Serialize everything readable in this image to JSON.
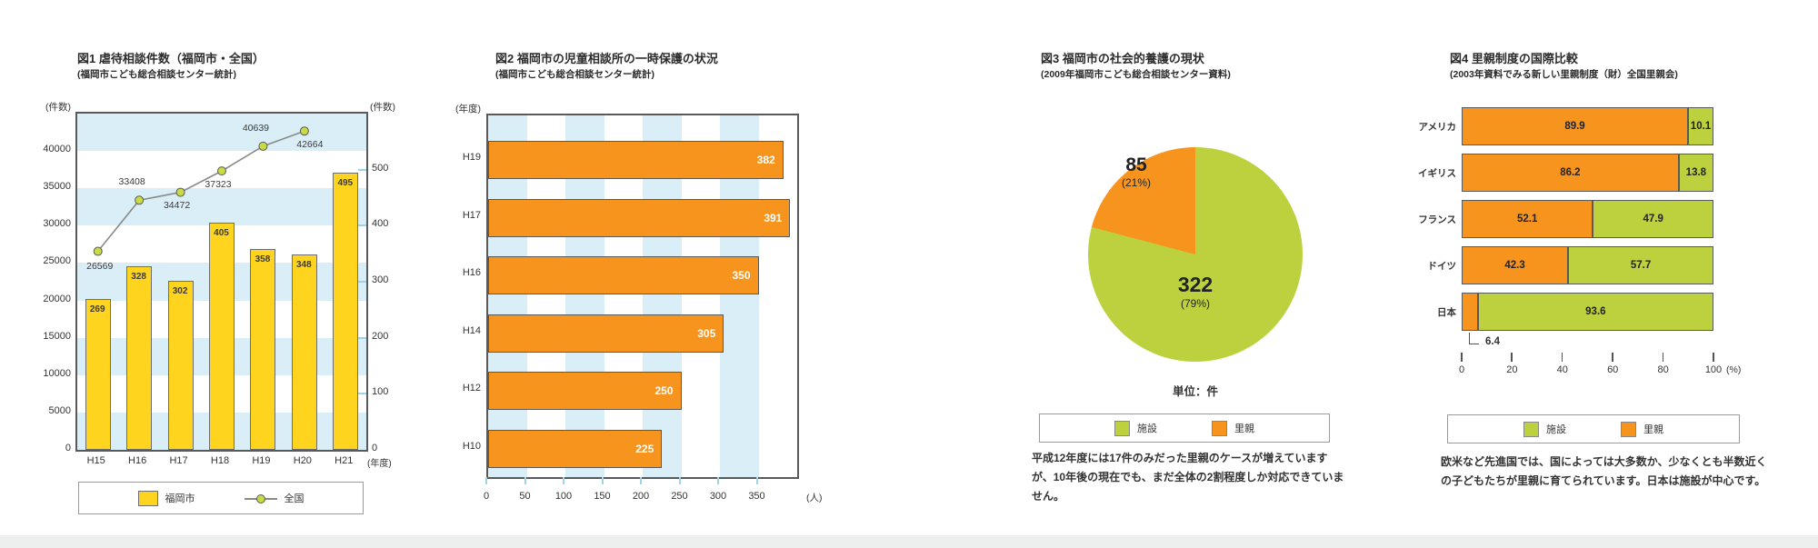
{
  "page": {
    "background": "#ffffff",
    "bottom_strip_color": "#ecefee"
  },
  "colors": {
    "yellow": "#FFD41E",
    "orange": "#F7941D",
    "green": "#BDD13F",
    "stripe_blue": "#DAEEF7",
    "plot_border": "#58595B",
    "bar_border": "#6E6E6E",
    "line_gray": "#8A8A8A",
    "marker_green": "#C9DA45",
    "tick_cyan": "#9ED3E8",
    "legend_border": "#9B9B9B",
    "text_dark": "#333333"
  },
  "chart_data": [
    {
      "type": "bar+line",
      "title": "図1 虐待相談件数（福岡市・全国）",
      "subtitle": "(福岡市こども総合相談センター統計)",
      "categories": [
        "H15",
        "H16",
        "H17",
        "H18",
        "H19",
        "H20",
        "H21"
      ],
      "series": [
        {
          "name": "福岡市",
          "type": "bar",
          "axis": "right",
          "values": [
            269,
            328,
            302,
            405,
            358,
            348,
            495
          ]
        },
        {
          "name": "全国",
          "type": "line",
          "axis": "left",
          "values": [
            26569,
            33408,
            34472,
            37323,
            40639,
            42664
          ]
        }
      ],
      "left_axis": {
        "label": "(件数)",
        "ticks": [
          0,
          5000,
          10000,
          15000,
          20000,
          25000,
          30000,
          35000,
          40000
        ],
        "max": 45000
      },
      "right_axis": {
        "label": "(件数)",
        "ticks": [
          0,
          100,
          200,
          300,
          400,
          500
        ],
        "max": 600
      },
      "x_axis_label": "(年度)",
      "legend": [
        "福岡市",
        "全国"
      ],
      "grid": "horizontal-stripes"
    },
    {
      "type": "bar",
      "orientation": "horizontal",
      "title": "図2 福岡市の児童相談所の一時保護の状況",
      "subtitle": "(福岡市こども総合相談センター統計)",
      "y_axis_label": "(年度)",
      "categories": [
        "H19",
        "H17",
        "H16",
        "H14",
        "H12",
        "H10"
      ],
      "values": [
        382,
        391,
        350,
        305,
        250,
        225
      ],
      "x_axis": {
        "ticks": [
          0,
          50,
          100,
          150,
          200,
          250,
          300,
          350
        ],
        "max": 400,
        "unit": "(人)"
      },
      "grid": "vertical-stripes"
    },
    {
      "type": "pie",
      "title": "図3 福岡市の社会的養護の現状",
      "subtitle": "(2009年福岡市こども総合相談センター資料)",
      "slices": [
        {
          "label": "施設",
          "value": 322,
          "pct": "(79%)",
          "color_key": "green"
        },
        {
          "label": "里親",
          "value": 85,
          "pct": "(21%)",
          "color_key": "orange"
        }
      ],
      "unit_note": "単位：件",
      "legend": [
        "施設",
        "里親"
      ],
      "caption": "平成12年度には17件のみだった里親のケースが増えていますが、10年後の現在でも、まだ全体の2割程度しか対応できていません。"
    },
    {
      "type": "stacked-bar-horizontal",
      "title": "図4 里親制度の国際比較",
      "subtitle": "(2003年資料でみる新しい里親制度（財）全国里親会)",
      "categories": [
        "アメリカ",
        "イギリス",
        "フランス",
        "ドイツ",
        "日本"
      ],
      "series": [
        {
          "name": "里親",
          "color_key": "orange",
          "values": [
            89.9,
            86.2,
            52.1,
            42.3,
            6.4
          ]
        },
        {
          "name": "施設",
          "color_key": "green",
          "values": [
            10.1,
            13.8,
            47.9,
            57.7,
            93.6
          ]
        }
      ],
      "x_axis": {
        "ticks": [
          0,
          20,
          40,
          60,
          80,
          100
        ],
        "unit": "(%)"
      },
      "callout_value": "6.4",
      "legend": [
        "施設",
        "里親"
      ],
      "caption": "欧米など先進国では、国によっては大多数か、少なくとも半数近くの子どもたちが里親に育てられています。日本は施設が中心です。"
    }
  ]
}
